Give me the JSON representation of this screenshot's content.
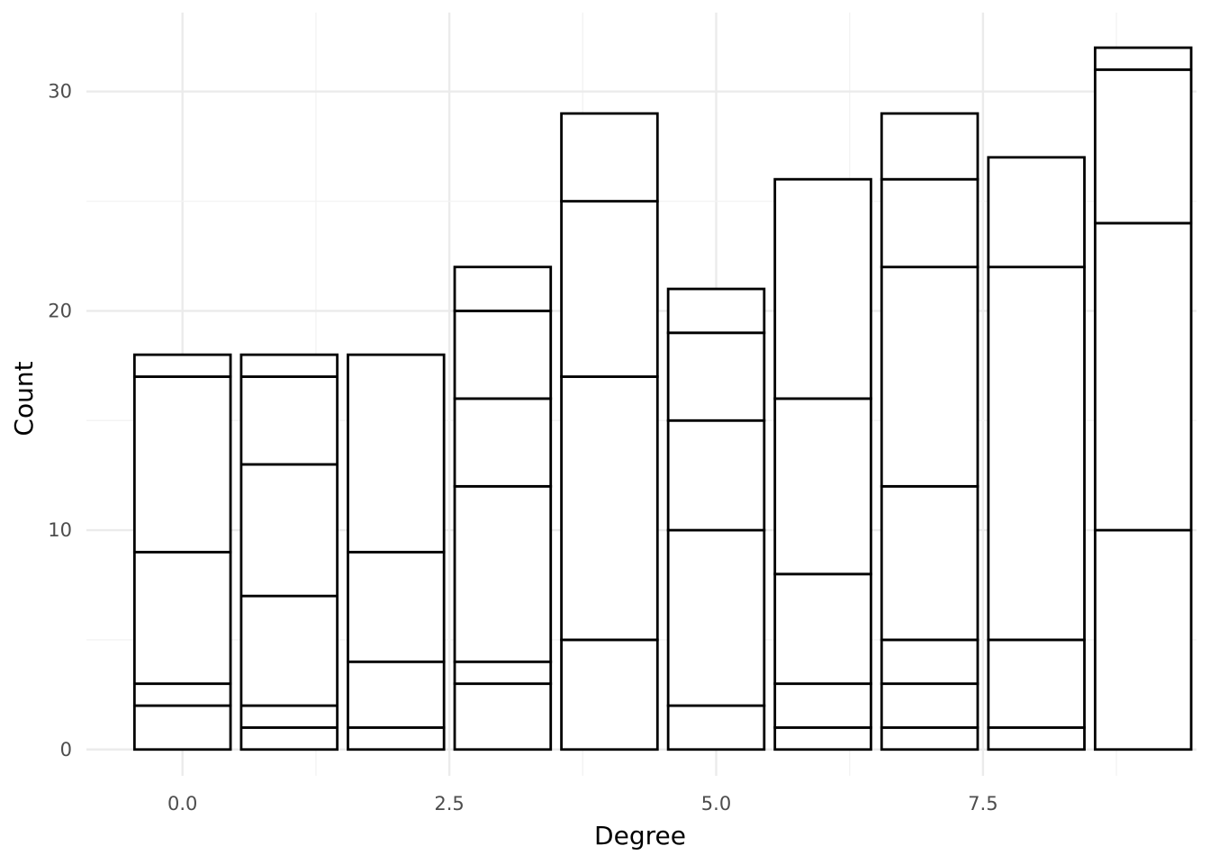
{
  "chart_data": {
    "type": "bar",
    "stacked": true,
    "title": "",
    "xlabel": "Degree",
    "ylabel": "Count",
    "x": [
      0,
      1,
      2,
      3,
      4,
      5,
      6,
      7,
      8,
      9
    ],
    "stack_boundaries": [
      [
        0,
        2,
        3,
        9,
        17,
        18
      ],
      [
        0,
        1,
        2,
        7,
        13,
        17,
        18
      ],
      [
        0,
        1,
        4,
        9,
        18
      ],
      [
        0,
        3,
        4,
        12,
        16,
        20,
        22
      ],
      [
        0,
        5,
        17,
        25,
        29
      ],
      [
        0,
        2,
        10,
        15,
        19,
        21
      ],
      [
        0,
        1,
        3,
        8,
        16,
        26
      ],
      [
        0,
        1,
        3,
        5,
        12,
        22,
        26,
        29
      ],
      [
        0,
        1,
        5,
        22,
        27
      ],
      [
        0,
        10,
        24,
        31,
        32
      ]
    ],
    "totals": [
      18,
      18,
      18,
      22,
      29,
      21,
      26,
      29,
      27,
      32
    ],
    "xlim": [
      -0.9,
      9.5
    ],
    "ylim": [
      -1.2,
      33.6
    ],
    "x_ticks": [
      0,
      2.5,
      5,
      7.5
    ],
    "x_tick_labels": [
      "0.0",
      "2.5",
      "5.0",
      "7.5"
    ],
    "y_ticks": [
      0,
      10,
      20,
      30
    ],
    "y_tick_labels": [
      "0",
      "10",
      "20",
      "30"
    ],
    "fill_color": "#ffffff",
    "outline_color": "#000000",
    "grid": true,
    "legend": "none"
  }
}
